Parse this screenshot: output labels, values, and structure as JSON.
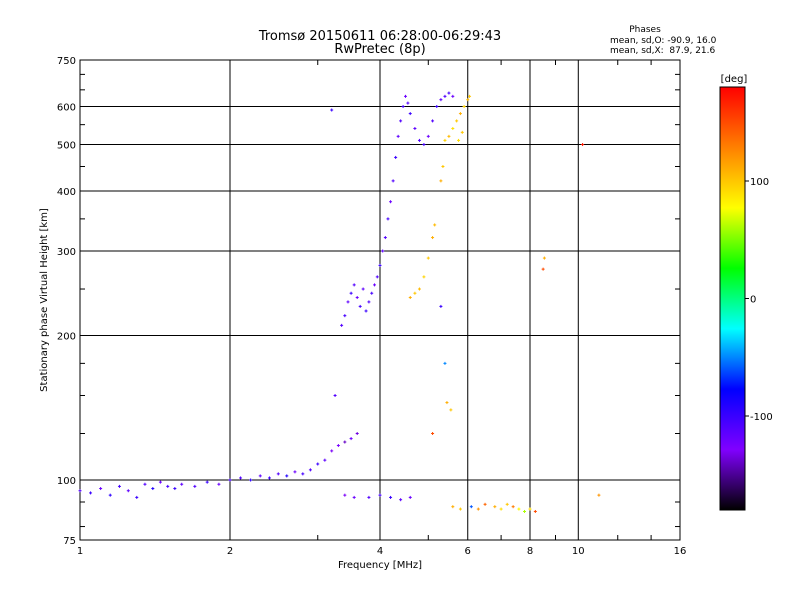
{
  "chart_data": {
    "type": "scatter",
    "title": "Tromsø 20150611 06:28:00-06:29:43",
    "subtitle": "RwPretec (8p)",
    "xlabel": "Frequency [MHz]",
    "ylabel": "Stationary phase Virtual Height [km]",
    "xscale": "log",
    "yscale": "log",
    "xlim": [
      1,
      16
    ],
    "ylim": [
      75,
      750
    ],
    "x_ticks": [
      1,
      2,
      4,
      6,
      8,
      10,
      16
    ],
    "y_ticks": [
      75,
      100,
      200,
      300,
      400,
      500,
      600,
      750
    ],
    "grid": true,
    "stats": {
      "header": "Phases",
      "line1": "mean, sd,O: -90.9, 16.0",
      "line2": "mean, sd,X:  87.9, 21.6"
    },
    "colorbar": {
      "label": "[deg]",
      "range": [
        -180,
        180
      ],
      "ticks": [
        100,
        0,
        -100
      ],
      "colors": [
        "#ff0000",
        "#ff8000",
        "#ffff00",
        "#00ff00",
        "#00ffff",
        "#0000ff",
        "#8000ff",
        "#000000"
      ]
    },
    "series": [
      {
        "points": [
          [
            1.0,
            95,
            -110
          ],
          [
            1.05,
            94,
            -100
          ],
          [
            1.1,
            96,
            -120
          ],
          [
            1.15,
            93,
            -95
          ],
          [
            1.2,
            97,
            -105
          ],
          [
            1.25,
            95,
            -115
          ],
          [
            1.3,
            92,
            -100
          ],
          [
            1.35,
            98,
            -110
          ],
          [
            1.4,
            96,
            -90
          ],
          [
            1.45,
            99,
            -120
          ],
          [
            1.5,
            97,
            -105
          ],
          [
            1.55,
            96,
            -100
          ],
          [
            1.6,
            98,
            -115
          ],
          [
            1.7,
            97,
            -110
          ],
          [
            1.8,
            99,
            -100
          ],
          [
            1.9,
            98,
            -120
          ],
          [
            2.0,
            100,
            -105
          ],
          [
            2.1,
            101,
            -110
          ],
          [
            2.2,
            100,
            -95
          ],
          [
            2.3,
            102,
            -115
          ],
          [
            2.4,
            101,
            -100
          ],
          [
            2.5,
            103,
            -110
          ],
          [
            2.6,
            102,
            -90
          ],
          [
            2.7,
            104,
            -120
          ],
          [
            2.8,
            103,
            -105
          ],
          [
            2.9,
            105,
            -110
          ],
          [
            3.0,
            108,
            -100
          ],
          [
            3.1,
            110,
            -115
          ],
          [
            3.2,
            115,
            -130
          ],
          [
            3.3,
            118,
            -125
          ],
          [
            3.4,
            120,
            -140
          ],
          [
            3.5,
            122,
            -120
          ],
          [
            3.6,
            125,
            -135
          ],
          [
            3.25,
            150,
            -110
          ],
          [
            3.4,
            93,
            -130
          ],
          [
            3.55,
            92,
            -120
          ],
          [
            3.8,
            92,
            -110
          ],
          [
            4.0,
            93,
            -105
          ],
          [
            4.2,
            92,
            -100
          ],
          [
            4.4,
            91,
            -115
          ],
          [
            4.6,
            92,
            -120
          ],
          [
            3.35,
            210,
            -110
          ],
          [
            3.4,
            220,
            -105
          ],
          [
            3.45,
            235,
            -115
          ],
          [
            3.5,
            245,
            -100
          ],
          [
            3.55,
            255,
            -110
          ],
          [
            3.6,
            240,
            -120
          ],
          [
            3.65,
            230,
            -105
          ],
          [
            3.7,
            250,
            -115
          ],
          [
            3.75,
            225,
            -100
          ],
          [
            3.8,
            235,
            -110
          ],
          [
            3.85,
            245,
            -105
          ],
          [
            3.9,
            255,
            -120
          ],
          [
            3.95,
            265,
            -110
          ],
          [
            4.0,
            280,
            -100
          ],
          [
            4.05,
            300,
            -115
          ],
          [
            4.1,
            320,
            -110
          ],
          [
            4.15,
            350,
            -105
          ],
          [
            4.2,
            380,
            -120
          ],
          [
            4.25,
            420,
            -110
          ],
          [
            4.3,
            470,
            -100
          ],
          [
            4.35,
            520,
            -115
          ],
          [
            4.4,
            560,
            -110
          ],
          [
            4.45,
            600,
            -105
          ],
          [
            4.5,
            630,
            -120
          ],
          [
            4.55,
            610,
            -110
          ],
          [
            4.6,
            580,
            -100
          ],
          [
            4.7,
            540,
            -115
          ],
          [
            4.8,
            510,
            -110
          ],
          [
            4.9,
            500,
            -105
          ],
          [
            5.0,
            520,
            -120
          ],
          [
            5.1,
            560,
            -110
          ],
          [
            5.2,
            600,
            -100
          ],
          [
            5.3,
            620,
            -115
          ],
          [
            5.4,
            630,
            -110
          ],
          [
            5.5,
            640,
            -105
          ],
          [
            5.6,
            630,
            -120
          ],
          [
            3.2,
            590,
            -100
          ],
          [
            5.3,
            420,
            110
          ],
          [
            5.35,
            450,
            100
          ],
          [
            5.4,
            510,
            95
          ],
          [
            5.5,
            520,
            105
          ],
          [
            5.6,
            540,
            90
          ],
          [
            5.7,
            560,
            100
          ],
          [
            5.8,
            580,
            110
          ],
          [
            5.9,
            600,
            95
          ],
          [
            6.0,
            620,
            105
          ],
          [
            6.05,
            630,
            100
          ],
          [
            5.75,
            510,
            90
          ],
          [
            5.85,
            530,
            100
          ],
          [
            4.6,
            240,
            110
          ],
          [
            4.7,
            245,
            100
          ],
          [
            4.8,
            250,
            105
          ],
          [
            4.9,
            265,
            95
          ],
          [
            5.0,
            290,
            100
          ],
          [
            5.1,
            320,
            110
          ],
          [
            5.15,
            340,
            105
          ],
          [
            5.3,
            230,
            -100
          ],
          [
            5.4,
            175,
            -50
          ],
          [
            5.45,
            145,
            110
          ],
          [
            5.55,
            140,
            100
          ],
          [
            5.1,
            125,
            150
          ],
          [
            5.6,
            88,
            110
          ],
          [
            5.8,
            87,
            100
          ],
          [
            6.1,
            88,
            -60
          ],
          [
            6.3,
            87,
            120
          ],
          [
            6.5,
            89,
            140
          ],
          [
            6.8,
            88,
            110
          ],
          [
            7.0,
            87,
            90
          ],
          [
            7.2,
            89,
            100
          ],
          [
            7.4,
            88,
            130
          ],
          [
            7.6,
            87,
            80
          ],
          [
            7.8,
            86,
            60
          ],
          [
            8.0,
            87,
            90
          ],
          [
            8.2,
            86,
            150
          ],
          [
            8.5,
            275,
            150
          ],
          [
            8.55,
            290,
            110
          ],
          [
            10.2,
            500,
            170
          ],
          [
            11.0,
            93,
            120
          ]
        ]
      }
    ]
  }
}
